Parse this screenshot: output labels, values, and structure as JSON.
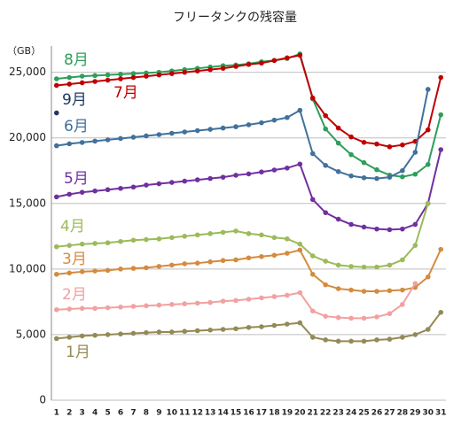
{
  "chart_data": {
    "type": "line",
    "title": "フリータンクの残容量",
    "y_label": "（GB）",
    "x": [
      1,
      2,
      3,
      4,
      5,
      6,
      7,
      8,
      9,
      10,
      11,
      12,
      13,
      14,
      15,
      16,
      17,
      18,
      19,
      20,
      21,
      22,
      23,
      24,
      25,
      26,
      27,
      28,
      29,
      30,
      31
    ],
    "xlim": [
      0.6,
      31.4
    ],
    "ylim": [
      0,
      27000
    ],
    "yticks": [
      0,
      {
        "value": 5000,
        "label": "5,000"
      },
      {
        "value": 10000,
        "label": "10,000"
      },
      {
        "value": 15000,
        "label": "15,000"
      },
      {
        "value": 20000,
        "label": "20,000"
      },
      {
        "value": 25000,
        "label": "25,000"
      }
    ],
    "grid": true,
    "series": [
      {
        "name": "8月",
        "color": "#2e9e5b",
        "values": [
          24500,
          24600,
          24700,
          24750,
          24800,
          24850,
          24900,
          24950,
          25000,
          25100,
          25200,
          25300,
          25400,
          25500,
          25550,
          25650,
          25800,
          25900,
          26050,
          26400,
          22970,
          20680,
          19600,
          18720,
          18110,
          17570,
          17160,
          17030,
          17230,
          17970,
          21760
        ]
      },
      {
        "name": "7月",
        "color": "#c00000",
        "values": [
          24000,
          24100,
          24200,
          24300,
          24400,
          24500,
          24600,
          24700,
          24800,
          24900,
          25000,
          25100,
          25200,
          25300,
          25450,
          25600,
          25700,
          25900,
          26100,
          26300,
          23040,
          21690,
          20750,
          20070,
          19660,
          19530,
          19320,
          19460,
          19730,
          20610,
          24600
        ]
      },
      {
        "name": "9月",
        "color": "#1f3864",
        "values": [
          21900,
          null,
          null,
          null,
          null,
          null,
          null,
          null,
          null,
          null,
          null,
          null,
          null,
          null,
          null,
          null,
          null,
          null,
          null,
          null,
          null,
          null,
          null,
          null,
          null,
          null,
          null,
          null,
          null,
          null,
          null
        ]
      },
      {
        "name": "6月",
        "color": "#41719c",
        "values": [
          19400,
          19550,
          19650,
          19750,
          19850,
          19950,
          20050,
          20150,
          20250,
          20350,
          20450,
          20550,
          20650,
          20750,
          20850,
          21000,
          21150,
          21350,
          21550,
          22100,
          18800,
          17900,
          17430,
          17100,
          16960,
          16900,
          17000,
          17500,
          18900,
          23700,
          null
        ]
      },
      {
        "name": "5月",
        "color": "#7030a0",
        "values": [
          15500,
          15700,
          15850,
          15950,
          16050,
          16150,
          16250,
          16400,
          16500,
          16600,
          16700,
          16800,
          16900,
          17000,
          17150,
          17250,
          17400,
          17550,
          17700,
          18000,
          15300,
          14300,
          13800,
          13400,
          13200,
          13050,
          13000,
          13050,
          13400,
          15000,
          19100
        ]
      },
      {
        "name": "4月",
        "color": "#9bbb59",
        "values": [
          11700,
          11800,
          11900,
          11950,
          12000,
          12100,
          12200,
          12250,
          12300,
          12400,
          12500,
          12600,
          12700,
          12800,
          12900,
          12700,
          12600,
          12400,
          12300,
          11900,
          11000,
          10600,
          10300,
          10200,
          10150,
          10150,
          10300,
          10700,
          11800,
          15000,
          null
        ]
      },
      {
        "name": "3月",
        "color": "#d48b3f",
        "values": [
          9600,
          9700,
          9800,
          9850,
          9900,
          10000,
          10050,
          10100,
          10200,
          10300,
          10400,
          10450,
          10550,
          10650,
          10700,
          10850,
          10950,
          11050,
          11200,
          11450,
          9600,
          8800,
          8500,
          8400,
          8300,
          8300,
          8350,
          8400,
          8600,
          9400,
          11500
        ]
      },
      {
        "name": "2月",
        "color": "#f2a0a0",
        "values": [
          6900,
          6950,
          7000,
          7000,
          7050,
          7100,
          7150,
          7200,
          7250,
          7300,
          7350,
          7400,
          7450,
          7550,
          7600,
          7700,
          7800,
          7900,
          8000,
          8200,
          6800,
          6400,
          6300,
          6250,
          6250,
          6350,
          6600,
          7300,
          8900,
          null,
          null
        ]
      },
      {
        "name": "1月",
        "color": "#948a54",
        "values": [
          4700,
          4800,
          4900,
          4950,
          5000,
          5050,
          5100,
          5150,
          5200,
          5200,
          5250,
          5300,
          5350,
          5400,
          5450,
          5550,
          5600,
          5700,
          5800,
          5900,
          4800,
          4600,
          4500,
          4500,
          4500,
          4600,
          4650,
          4800,
          5000,
          5400,
          6700
        ]
      }
    ]
  }
}
